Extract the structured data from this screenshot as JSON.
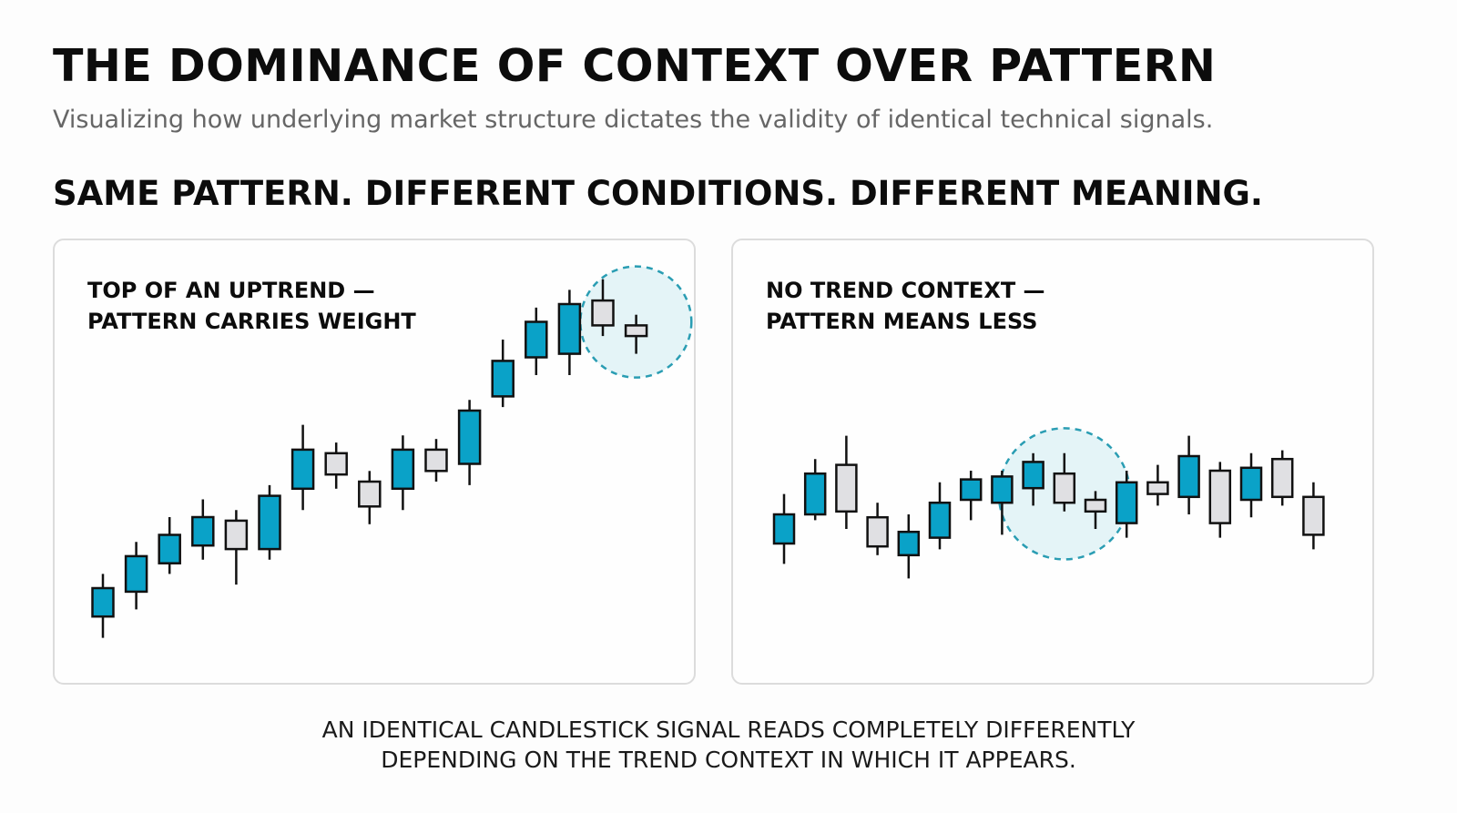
{
  "header": {
    "title": "THE DOMINANCE OF CONTEXT OVER PATTERN",
    "subtitle": "Visualizing how underlying market structure dictates the validity of identical technical signals.",
    "tagline": "SAME PATTERN. DIFFERENT CONDITIONS. DIFFERENT MEANING."
  },
  "colors": {
    "bullish": "#0aa2c8",
    "bearish": "#e0e0e3",
    "outline": "#111111",
    "highlight_fill": "#dff2f6",
    "highlight_stroke": "#2a9db3"
  },
  "panels": [
    {
      "id": "uptrend",
      "title_line1": "TOP OF AN UPTREND —",
      "title_line2": "PATTERN CARRIES WEIGHT"
    },
    {
      "id": "no-trend",
      "title_line1": "NO TREND CONTEXT —",
      "title_line2": "PATTERN MEANS LESS"
    }
  ],
  "chart_data": [
    {
      "type": "candlestick",
      "title": "TOP OF AN UPTREND — PATTERN CARRIES WEIGHT",
      "ylim": [
        0,
        100
      ],
      "highlight": {
        "first_candle": 15,
        "last_candle": 16
      },
      "candles": [
        {
          "open": 12,
          "close": 20,
          "high": 24,
          "low": 6,
          "dir": "up"
        },
        {
          "open": 19,
          "close": 29,
          "high": 33,
          "low": 14,
          "dir": "up"
        },
        {
          "open": 27,
          "close": 35,
          "high": 40,
          "low": 24,
          "dir": "up"
        },
        {
          "open": 32,
          "close": 40,
          "high": 45,
          "low": 28,
          "dir": "up"
        },
        {
          "open": 39,
          "close": 31,
          "high": 42,
          "low": 21,
          "dir": "down"
        },
        {
          "open": 31,
          "close": 46,
          "high": 49,
          "low": 28,
          "dir": "up"
        },
        {
          "open": 48,
          "close": 59,
          "high": 66,
          "low": 42,
          "dir": "up"
        },
        {
          "open": 58,
          "close": 52,
          "high": 61,
          "low": 48,
          "dir": "down"
        },
        {
          "open": 50,
          "close": 43,
          "high": 53,
          "low": 38,
          "dir": "down"
        },
        {
          "open": 48,
          "close": 59,
          "high": 63,
          "low": 42,
          "dir": "up"
        },
        {
          "open": 59,
          "close": 53,
          "high": 62,
          "low": 50,
          "dir": "down"
        },
        {
          "open": 55,
          "close": 70,
          "high": 73,
          "low": 49,
          "dir": "up"
        },
        {
          "open": 74,
          "close": 84,
          "high": 90,
          "low": 71,
          "dir": "up"
        },
        {
          "open": 85,
          "close": 95,
          "high": 99,
          "low": 80,
          "dir": "up"
        },
        {
          "open": 86,
          "close": 100,
          "high": 104,
          "low": 80,
          "dir": "up"
        },
        {
          "open": 101,
          "close": 94,
          "high": 107,
          "low": 91,
          "dir": "down"
        },
        {
          "open": 94,
          "close": 91,
          "high": 97,
          "low": 86,
          "dir": "down"
        }
      ]
    },
    {
      "type": "candlestick",
      "title": "NO TREND CONTEXT — PATTERN MEANS LESS",
      "ylim": [
        0,
        100
      ],
      "highlight": {
        "first_candle": 8,
        "last_candle": 10
      },
      "candles": [
        {
          "open": 35,
          "close": 45,
          "high": 52,
          "low": 28,
          "dir": "up"
        },
        {
          "open": 45,
          "close": 59,
          "high": 64,
          "low": 43,
          "dir": "up"
        },
        {
          "open": 62,
          "close": 46,
          "high": 72,
          "low": 40,
          "dir": "down"
        },
        {
          "open": 44,
          "close": 34,
          "high": 49,
          "low": 31,
          "dir": "down"
        },
        {
          "open": 31,
          "close": 39,
          "high": 45,
          "low": 23,
          "dir": "up"
        },
        {
          "open": 37,
          "close": 49,
          "high": 56,
          "low": 33,
          "dir": "up"
        },
        {
          "open": 50,
          "close": 57,
          "high": 60,
          "low": 43,
          "dir": "up"
        },
        {
          "open": 49,
          "close": 58,
          "high": 60,
          "low": 38,
          "dir": "up"
        },
        {
          "open": 54,
          "close": 63,
          "high": 66,
          "low": 48,
          "dir": "up"
        },
        {
          "open": 59,
          "close": 49,
          "high": 66,
          "low": 46,
          "dir": "down"
        },
        {
          "open": 50,
          "close": 46,
          "high": 53,
          "low": 40,
          "dir": "down"
        },
        {
          "open": 42,
          "close": 56,
          "high": 60,
          "low": 37,
          "dir": "up"
        },
        {
          "open": 56,
          "close": 52,
          "high": 62,
          "low": 48,
          "dir": "down"
        },
        {
          "open": 51,
          "close": 65,
          "high": 72,
          "low": 45,
          "dir": "up"
        },
        {
          "open": 60,
          "close": 42,
          "high": 63,
          "low": 37,
          "dir": "down"
        },
        {
          "open": 50,
          "close": 61,
          "high": 66,
          "low": 44,
          "dir": "up"
        },
        {
          "open": 64,
          "close": 51,
          "high": 67,
          "low": 48,
          "dir": "down"
        },
        {
          "open": 51,
          "close": 38,
          "high": 56,
          "low": 33,
          "dir": "down"
        }
      ]
    }
  ],
  "footer": {
    "line1": "AN IDENTICAL CANDLESTICK SIGNAL READS COMPLETELY DIFFERENTLY",
    "line2": "DEPENDING ON THE TREND CONTEXT IN WHICH IT APPEARS."
  }
}
